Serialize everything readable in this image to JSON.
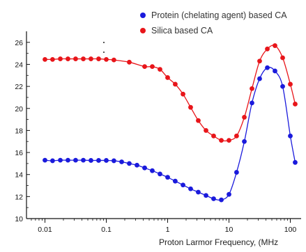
{
  "chart_data": {
    "type": "scatter",
    "title": "",
    "xlabel": "Proton Larmor Frequency, (MHz",
    "ylabel": "",
    "xscale": "log",
    "xlim": [
      0.005,
      150
    ],
    "ylim": [
      10,
      27
    ],
    "x_tick_labels": [
      "0.01",
      "0.1",
      "1",
      "10",
      "100"
    ],
    "y_ticks": [
      10,
      12,
      14,
      16,
      18,
      20,
      22,
      24,
      26
    ],
    "grid": false,
    "legend_position": "top-right",
    "series": [
      {
        "name": "Protein (chelating agent) based CA",
        "color": "#1a1adc",
        "x": [
          0.01,
          0.0133,
          0.0178,
          0.0237,
          0.0316,
          0.0422,
          0.0562,
          0.075,
          0.1,
          0.133,
          0.178,
          0.237,
          0.316,
          0.422,
          0.562,
          0.75,
          1.0,
          1.33,
          1.78,
          2.37,
          3.16,
          4.22,
          5.62,
          7.5,
          10,
          13.3,
          17.8,
          23.7,
          31.6,
          42.2,
          56.2,
          75,
          100,
          120
        ],
        "y": [
          15.3,
          15.25,
          15.3,
          15.3,
          15.3,
          15.3,
          15.28,
          15.28,
          15.28,
          15.25,
          15.15,
          15.0,
          14.85,
          14.6,
          14.35,
          14.05,
          13.75,
          13.4,
          13.05,
          12.7,
          12.4,
          12.1,
          11.8,
          11.7,
          12.2,
          14.2,
          17.0,
          20.5,
          22.7,
          23.7,
          23.4,
          22.0,
          17.5,
          15.1
        ]
      },
      {
        "name": "Silica based CA",
        "color": "#e8151a",
        "x": [
          0.01,
          0.0133,
          0.0178,
          0.0237,
          0.0316,
          0.0422,
          0.0562,
          0.075,
          0.1,
          0.133,
          0.237,
          0.422,
          0.562,
          0.75,
          1.0,
          1.33,
          1.78,
          2.37,
          3.16,
          4.22,
          5.62,
          7.5,
          10,
          13.3,
          17.8,
          23.7,
          31.6,
          42.2,
          56.2,
          75,
          100,
          120
        ],
        "y": [
          24.45,
          24.45,
          24.5,
          24.5,
          24.5,
          24.5,
          24.5,
          24.5,
          24.45,
          24.4,
          24.2,
          23.8,
          23.8,
          23.55,
          22.8,
          22.2,
          21.3,
          20.1,
          18.9,
          18.0,
          17.5,
          17.1,
          17.1,
          17.5,
          19.2,
          21.8,
          24.3,
          25.4,
          25.7,
          24.6,
          22.2,
          20.4
        ]
      }
    ]
  }
}
